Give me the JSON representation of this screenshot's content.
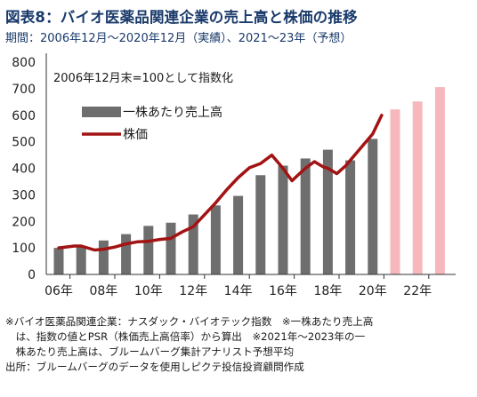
{
  "title": "図表8：バイオ医薬品関連企業の売上高と株価の推移",
  "subtitle": "期間：2006年12月～2020年12月（実績）、2021～23年（予想）",
  "notes": [
    "※バイオ医薬品関連企業：ナスダック・バイオテック指数　※一株あたり売上高",
    "　は、指数の値とPSR（株価売上高倍率）から算出　※2021年～2023年の一",
    "　株あたり売上高は、ブルームバーグ集計アナリスト予想平均",
    "出所：ブルームバーグのデータを使用しピクテ投信投資顧問作成"
  ],
  "chart_data": {
    "type": "bar",
    "annotation": "2006年12月末=100として指数化",
    "x": [
      2006,
      2007,
      2008,
      2009,
      2010,
      2011,
      2012,
      2013,
      2014,
      2015,
      2016,
      2017,
      2018,
      2019,
      2020,
      2021,
      2022,
      2023
    ],
    "xtick_labels": [
      "06年",
      "08年",
      "10年",
      "12年",
      "14年",
      "16年",
      "18年",
      "20年",
      "22年"
    ],
    "xtick_years": [
      2006,
      2008,
      2010,
      2012,
      2014,
      2016,
      2018,
      2020,
      2022
    ],
    "ylim": [
      0,
      800
    ],
    "yticks": [
      0,
      100,
      200,
      300,
      400,
      500,
      600,
      700,
      800
    ],
    "grid": false,
    "legend_position": "top-left",
    "series": [
      {
        "name": "一株あたり売上高",
        "type": "bar",
        "color": "#6e6e6e",
        "forecast_color": "#f6b8bd",
        "values": [
          100,
          104,
          128,
          152,
          183,
          195,
          226,
          260,
          296,
          374,
          410,
          437,
          470,
          430,
          511,
          622,
          652,
          706
        ],
        "forecast_from": 2021
      },
      {
        "name": "株価",
        "type": "line",
        "color": "#a31313",
        "points": [
          [
            2006.0,
            100
          ],
          [
            2006.7,
            107
          ],
          [
            2007.0,
            107
          ],
          [
            2007.6,
            92
          ],
          [
            2008.0,
            95
          ],
          [
            2008.5,
            103
          ],
          [
            2009.0,
            115
          ],
          [
            2009.5,
            123
          ],
          [
            2010.0,
            125
          ],
          [
            2010.5,
            132
          ],
          [
            2011.0,
            136
          ],
          [
            2011.5,
            160
          ],
          [
            2012.0,
            180
          ],
          [
            2012.5,
            225
          ],
          [
            2013.0,
            270
          ],
          [
            2013.5,
            320
          ],
          [
            2014.0,
            365
          ],
          [
            2014.5,
            402
          ],
          [
            2015.0,
            418
          ],
          [
            2015.5,
            450
          ],
          [
            2016.0,
            400
          ],
          [
            2016.4,
            353
          ],
          [
            2016.8,
            385
          ],
          [
            2017.0,
            400
          ],
          [
            2017.4,
            425
          ],
          [
            2017.8,
            405
          ],
          [
            2018.0,
            400
          ],
          [
            2018.4,
            380
          ],
          [
            2018.8,
            410
          ],
          [
            2019.0,
            430
          ],
          [
            2019.5,
            480
          ],
          [
            2020.0,
            530
          ],
          [
            2020.4,
            600
          ]
        ]
      }
    ]
  }
}
